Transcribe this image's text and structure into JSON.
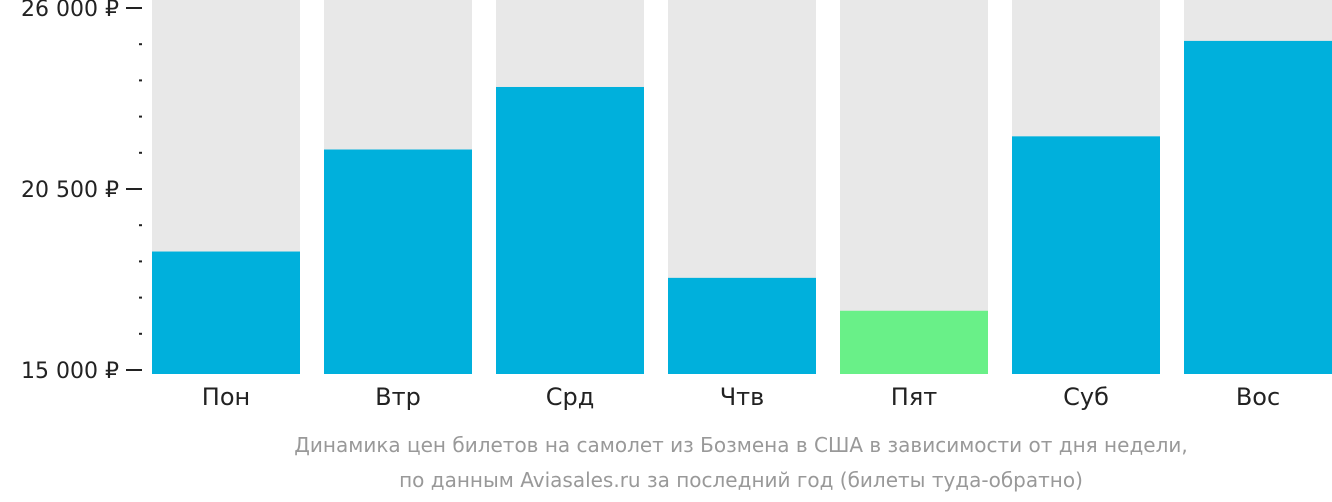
{
  "chart_data": {
    "type": "bar",
    "categories": [
      "Пон",
      "Втр",
      "Срд",
      "Чтв",
      "Пят",
      "Суб",
      "Вос"
    ],
    "values": [
      18600,
      21700,
      23600,
      17800,
      16800,
      22100,
      25000
    ],
    "ylim": [
      15000,
      26000
    ],
    "y_ticks": [
      {
        "value": 15000,
        "label": "15 000 ₽"
      },
      {
        "value": 20500,
        "label": "20 500 ₽"
      },
      {
        "value": 26000,
        "label": "26 000 ₽"
      }
    ],
    "y_minor_ticks": [
      16100,
      17200,
      18300,
      19400,
      21600,
      22700,
      23800,
      24900
    ],
    "highlight_index": 4,
    "caption_line1": "Динамика цен билетов на самолет из Бозмена в США в зависимости от дня недели,",
    "caption_line2": "по данным Aviasales.ru за последний год (билеты туда-обратно)",
    "grid": false,
    "legend": "none"
  },
  "colors": {
    "bar": "#00b0dc",
    "bar_highlight": "#69f088",
    "bar_background": "#e8e8e8",
    "axis": "#222222",
    "caption": "#999999"
  }
}
